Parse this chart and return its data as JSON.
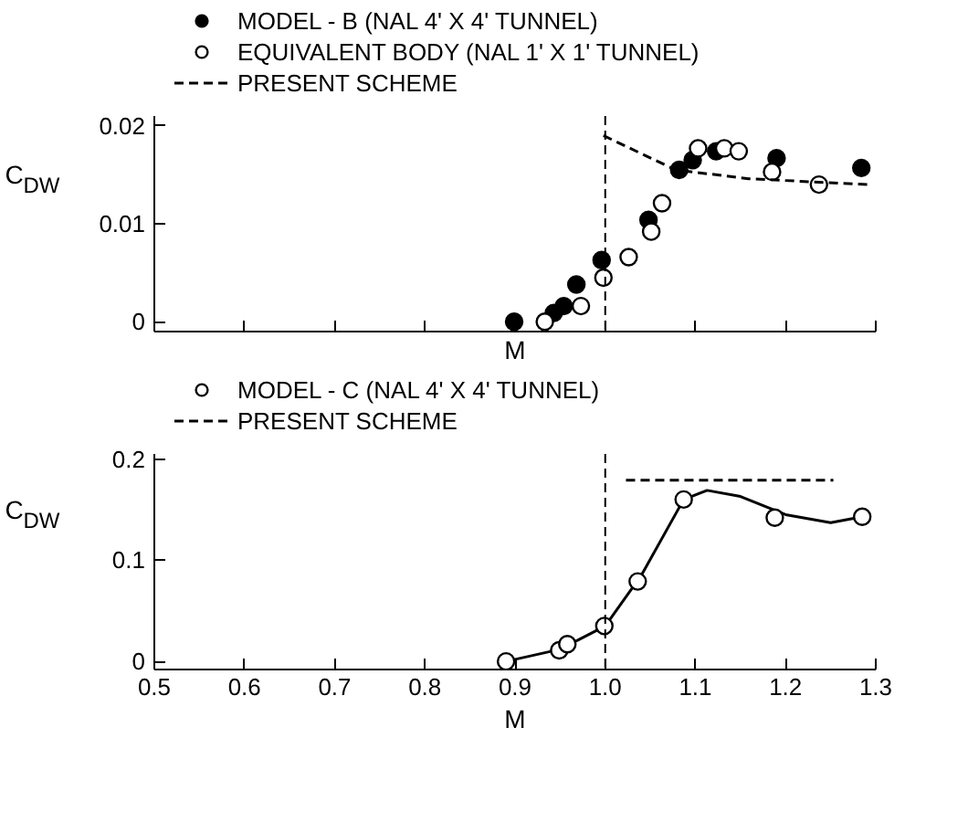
{
  "chart_data": [
    {
      "type": "scatter",
      "xlabel": "M",
      "ylabel": "C$_{DW}$",
      "xlim": [
        0.5,
        1.3
      ],
      "ylim": [
        -0.001,
        0.021
      ],
      "xticks": [
        0.5,
        0.6,
        0.7,
        0.8,
        0.9,
        1.0,
        1.1,
        1.2,
        1.3
      ],
      "yticks": [
        0,
        0.01,
        0.02
      ],
      "tick_labels": "y",
      "grid": false,
      "legend": "top",
      "marker": "circle",
      "series": [
        {
          "name": "MODEL - B (NAL 4' X 4' TUNNEL)",
          "color": "#000000",
          "x": [
            0.899,
            0.943,
            0.954,
            0.968,
            0.996,
            1.048,
            1.082,
            1.097,
            1.123,
            1.19,
            1.284
          ],
          "values": [
            0,
            0.0009,
            0.0016,
            0.0038,
            0.0063,
            0.0104,
            0.0155,
            0.0165,
            0.0174,
            0.0167,
            0.0157
          ]
        },
        {
          "name": "EQUIVALENT BODY (NAL 1' X 1' TUNNEL)",
          "color": "#ffffff",
          "x": [
            0.933,
            0.973,
            0.998,
            1.026,
            1.051,
            1.063,
            1.103,
            1.132,
            1.148,
            1.185,
            1.237
          ],
          "values": [
            0,
            0.0016,
            0.0045,
            0.0066,
            0.0092,
            0.0121,
            0.0177,
            0.0177,
            0.0174,
            0.0153,
            0.014
          ]
        },
        {
          "name": "PRESENT SCHEME",
          "type": "line",
          "line_style": "dashed",
          "marker": "none",
          "color": "#000000",
          "x": [
            0.998,
            1.078,
            1.159,
            1.291
          ],
          "values": [
            0.019,
            0.0155,
            0.0146,
            0.014
          ]
        }
      ],
      "ref_lines": [
        {
          "axis": "x",
          "value": 1.0,
          "color": "#000000",
          "line_style": "dashed"
        }
      ]
    },
    {
      "type": "scatter",
      "xlabel": "M",
      "ylabel": "C$_{DW}$",
      "xlim": [
        0.5,
        1.3
      ],
      "ylim": [
        -0.008,
        0.205
      ],
      "xticks": [
        0.5,
        0.6,
        0.7,
        0.8,
        0.9,
        {
          "value": 1.0,
          "label": "1.0"
        },
        1.1,
        1.2,
        1.3
      ],
      "yticks": [
        0,
        0.1,
        0.2
      ],
      "grid": false,
      "legend": "top",
      "marker": "circle",
      "series": [
        {
          "type": "line",
          "marker": "none",
          "color": "#000000",
          "line_style": "solid",
          "x": [
            0.89,
            0.95,
            1.0,
            1.04,
            1.087,
            1.113,
            1.15,
            1.2,
            1.25,
            1.285
          ],
          "values": [
            0,
            0.012,
            0.035,
            0.085,
            0.16,
            0.169,
            0.163,
            0.145,
            0.137,
            0.143
          ]
        },
        {
          "name": "MODEL - C (NAL 4' X 4' TUNNEL)",
          "color": "#ffffff",
          "x": [
            0.89,
            0.949,
            0.958,
            0.999,
            1.036,
            1.087,
            1.188,
            1.285
          ],
          "values": [
            0,
            0.011,
            0.017,
            0.035,
            0.079,
            0.16,
            0.142,
            0.143
          ]
        },
        {
          "name": "PRESENT SCHEME",
          "type": "line",
          "line_style": "dashed",
          "marker": "none",
          "color": "#000000",
          "x": [
            1.023,
            1.253
          ],
          "values": [
            0.179,
            0.179
          ]
        }
      ],
      "ref_lines": [
        {
          "axis": "x",
          "value": 1.0,
          "color": "#000000",
          "line_style": "dashed"
        }
      ]
    }
  ]
}
